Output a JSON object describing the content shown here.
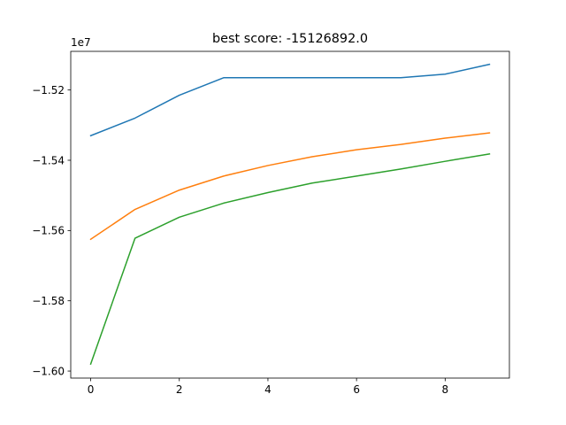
{
  "chart_data": {
    "type": "line",
    "title": "best score: -15126892.0",
    "xlabel": "",
    "ylabel": "",
    "y_offset_label": "1e7",
    "xlim": [
      -0.45,
      9.45
    ],
    "ylim": [
      -16.02,
      -15.09
    ],
    "x_ticks": [
      0,
      2,
      4,
      6,
      8
    ],
    "x_tick_labels": [
      "0",
      "2",
      "4",
      "6",
      "8"
    ],
    "y_ticks": [
      -16.0,
      -15.8,
      -15.6,
      -15.4,
      -15.2
    ],
    "y_tick_labels": [
      "−1.60",
      "−1.58",
      "−1.56",
      "−1.54",
      "−1.52"
    ],
    "grid": false,
    "x": [
      0,
      1,
      2,
      3,
      4,
      5,
      6,
      7,
      8,
      9
    ],
    "series": [
      {
        "color": "#1f77b4",
        "values": [
          -15.33,
          -15.28,
          -15.215,
          -15.165,
          -15.165,
          -15.165,
          -15.165,
          -15.165,
          -15.155,
          -15.127
        ]
      },
      {
        "color": "#ff7f0e",
        "values": [
          -15.625,
          -15.54,
          -15.485,
          -15.445,
          -15.415,
          -15.39,
          -15.37,
          -15.355,
          -15.337,
          -15.322
        ]
      },
      {
        "color": "#2ca02c",
        "values": [
          -15.98,
          -15.622,
          -15.562,
          -15.522,
          -15.492,
          -15.465,
          -15.445,
          -15.425,
          -15.403,
          -15.382
        ]
      }
    ]
  }
}
